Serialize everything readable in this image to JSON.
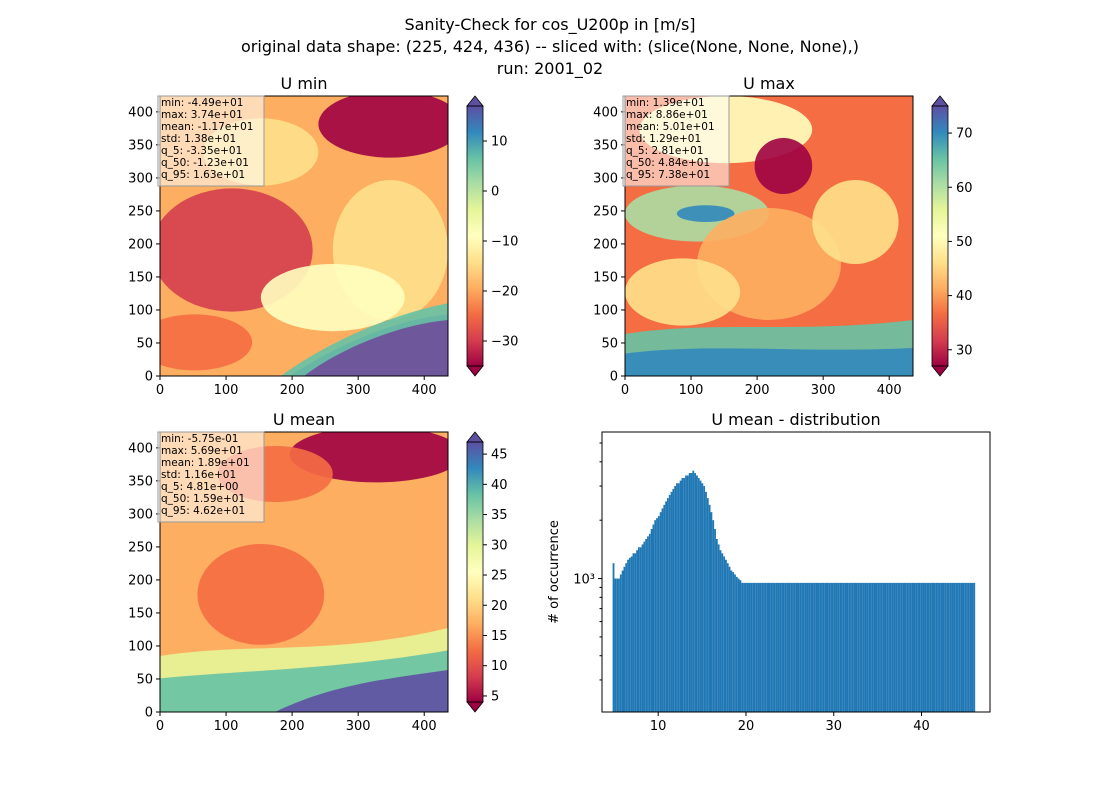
{
  "figure": {
    "title_lines": [
      "Sanity-Check for cos_U200p in [m/s]",
      "original data shape: (225, 424, 436) -- sliced with: (slice(None, None, None),)",
      "run: 2001_02"
    ]
  },
  "colors": {
    "spectral": [
      "#9e0142",
      "#d53e4f",
      "#f46d43",
      "#fdae61",
      "#fee08b",
      "#ffffbf",
      "#e6f598",
      "#abdda4",
      "#66c2a5",
      "#3288bd",
      "#5e4fa2"
    ],
    "hist_bar": "#1f77b4"
  },
  "chart_data": [
    {
      "type": "heatmap",
      "title": "U min",
      "xlim": [
        0,
        436
      ],
      "ylim": [
        0,
        424
      ],
      "xticks": [
        0,
        100,
        200,
        300,
        400
      ],
      "yticks": [
        0,
        50,
        100,
        150,
        200,
        250,
        300,
        350,
        400
      ],
      "colorbar": {
        "range": [
          -35,
          17
        ],
        "ticks": [
          10,
          0,
          -10,
          -20,
          -30
        ],
        "tick_labels": [
          "10",
          "0",
          "−10",
          "−20",
          "−30"
        ],
        "extend": "both"
      },
      "stats": [
        "min: -4.49e+01",
        "max: 3.74e+01",
        "mean: -1.17e+01",
        "std: 1.38e+01",
        "q_5: -3.35e+01",
        "q_50: -1.23e+01",
        "q_95: 1.63e+01"
      ]
    },
    {
      "type": "heatmap",
      "title": "U max",
      "xlim": [
        0,
        436
      ],
      "ylim": [
        0,
        424
      ],
      "xticks": [
        0,
        100,
        200,
        300,
        400
      ],
      "yticks": [
        0,
        50,
        100,
        150,
        200,
        250,
        300,
        350,
        400
      ],
      "colorbar": {
        "range": [
          27,
          75
        ],
        "ticks": [
          70,
          60,
          50,
          40,
          30
        ],
        "tick_labels": [
          "70",
          "60",
          "50",
          "40",
          "30"
        ],
        "extend": "both"
      },
      "stats": [
        "min: 1.39e+01",
        "max: 8.86e+01",
        "mean: 5.01e+01",
        "std: 1.29e+01",
        "q_5: 2.81e+01",
        "q_50: 4.84e+01",
        "q_95: 7.38e+01"
      ]
    },
    {
      "type": "heatmap",
      "title": "U mean",
      "xlim": [
        0,
        436
      ],
      "ylim": [
        0,
        424
      ],
      "xticks": [
        0,
        100,
        200,
        300,
        400
      ],
      "yticks": [
        0,
        50,
        100,
        150,
        200,
        250,
        300,
        350,
        400
      ],
      "colorbar": {
        "range": [
          4,
          47
        ],
        "ticks": [
          45,
          40,
          35,
          30,
          25,
          20,
          15,
          10,
          5
        ],
        "tick_labels": [
          "45",
          "40",
          "35",
          "30",
          "25",
          "20",
          "15",
          "10",
          "5"
        ],
        "extend": "both"
      },
      "stats": [
        "min: -5.75e-01",
        "max: 5.69e+01",
        "mean: 1.89e+01",
        "std: 1.16e+01",
        "q_5: 4.81e+00",
        "q_50: 1.59e+01",
        "q_95: 4.62e+01"
      ]
    },
    {
      "type": "bar",
      "title": "U mean - distribution",
      "ylabel": "# of occurrence",
      "y_scale": "log",
      "xlim": [
        3.6,
        47.8
      ],
      "ylim": [
        205,
        5700
      ],
      "xticks": [
        10,
        20,
        30,
        40
      ],
      "ytick_major": {
        "value": 1000,
        "label": "10³"
      },
      "bin_start": 4.81,
      "bin_width": 0.2065,
      "counts": [
        1200,
        1000,
        1000,
        1000,
        1050,
        1100,
        1150,
        1200,
        1250,
        1280,
        1300,
        1350,
        1350,
        1400,
        1450,
        1450,
        1500,
        1550,
        1600,
        1650,
        1700,
        1800,
        1900,
        2000,
        2050,
        2100,
        2200,
        2300,
        2400,
        2500,
        2600,
        2700,
        2800,
        2900,
        3000,
        3100,
        3100,
        3200,
        3300,
        3300,
        3400,
        3400,
        3500,
        3500,
        3600,
        3500,
        3400,
        3300,
        3200,
        3100,
        3000,
        2800,
        2600,
        2400,
        2200,
        2000,
        1800,
        1600,
        1500,
        1400,
        1350,
        1300,
        1250,
        1200,
        1150,
        1100,
        1080,
        1050,
        1020,
        1000,
        980,
        950,
        950,
        950,
        950,
        950,
        950,
        950,
        950,
        950,
        950,
        950,
        950,
        950,
        950,
        950,
        950,
        950,
        950,
        950,
        950,
        950,
        950,
        950,
        950,
        950,
        950,
        950,
        950,
        950,
        950,
        950,
        950,
        950,
        950,
        950,
        950,
        950,
        950,
        950,
        950,
        950,
        950,
        950,
        950,
        950,
        950,
        950,
        950,
        950,
        950,
        950,
        950,
        950,
        950,
        950,
        950,
        950,
        950,
        950,
        950,
        950,
        950,
        950,
        950,
        950,
        950,
        950,
        950,
        950,
        950,
        950,
        950,
        950,
        950,
        950,
        950,
        950,
        950,
        950,
        950,
        950,
        950,
        950,
        950,
        950,
        950,
        950,
        950,
        950,
        950,
        950,
        950,
        950,
        950,
        950,
        950,
        950,
        950,
        950,
        950,
        950,
        950,
        950,
        950,
        950,
        950,
        950,
        950,
        950,
        950,
        950,
        950,
        950,
        950,
        950,
        950,
        950,
        950,
        950,
        950,
        950,
        950,
        950,
        950,
        950,
        950,
        950,
        950,
        950
      ]
    }
  ]
}
